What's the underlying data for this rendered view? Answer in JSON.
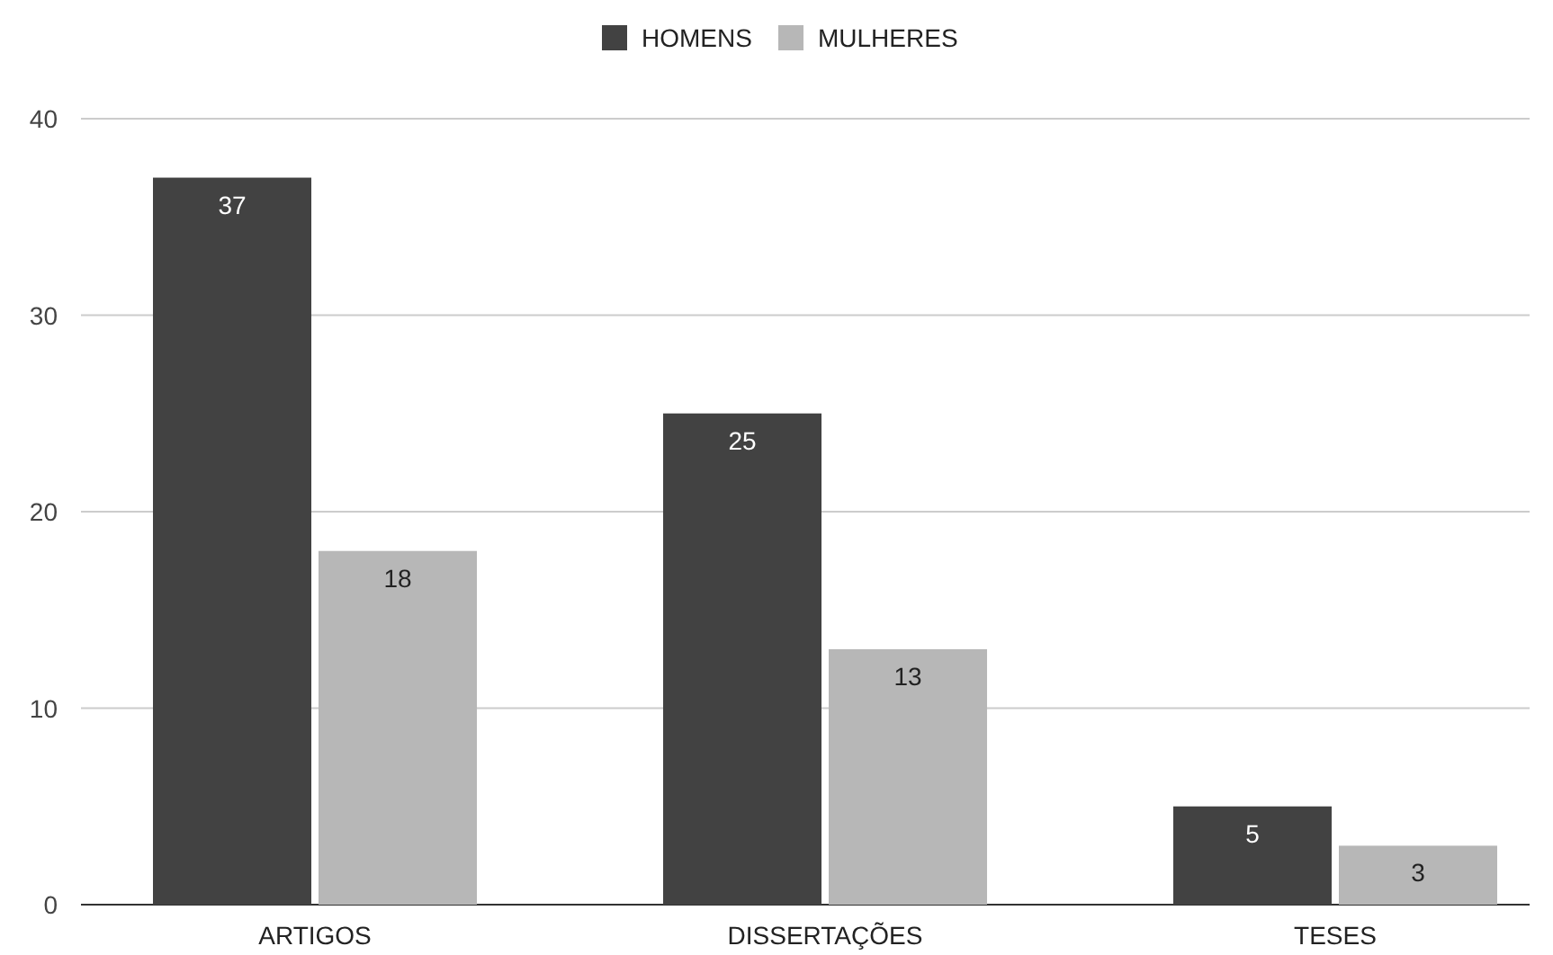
{
  "chart_data": {
    "type": "bar",
    "categories": [
      "ARTIGOS",
      "DISSERTAÇÕES",
      "TESES"
    ],
    "series": [
      {
        "name": "HOMENS",
        "color": "#424242",
        "values": [
          37,
          25,
          5
        ]
      },
      {
        "name": "MULHERES",
        "color": "#b7b7b7",
        "values": [
          18,
          13,
          3
        ]
      }
    ],
    "ylim": [
      0,
      40
    ],
    "yticks": [
      0,
      10,
      20,
      30,
      40
    ],
    "grid": "y",
    "legend": "top",
    "data_labels": true
  }
}
